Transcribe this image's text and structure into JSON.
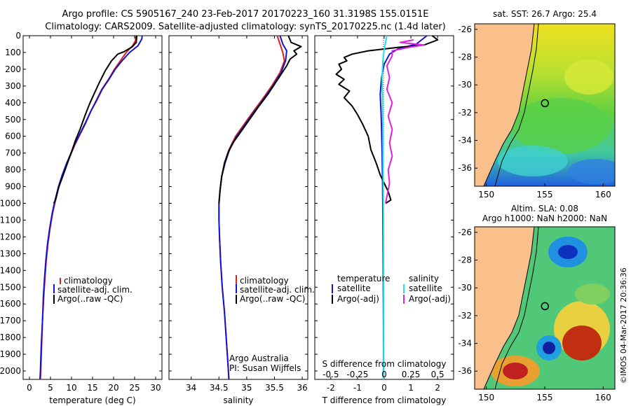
{
  "header": {
    "line1": "Argo profile: CS 5905167_240 23-Feb-2017 20170223_160 31.3198S 155.0151E",
    "line2": "Climatology: CARS2009. Satellite-adjusted climatology: synTS_20170225.nc (1.4d later)"
  },
  "colors": {
    "climatology": "#e0201b",
    "satellite": "#1414d0",
    "argo": "#000000",
    "salinity_satellite": "#22e0e8",
    "salinity_argo": "#e020e0",
    "land": "#f9c08c"
  },
  "depth_axis": {
    "ticks": [
      0,
      100,
      200,
      300,
      400,
      500,
      600,
      700,
      800,
      900,
      1000,
      1100,
      1200,
      1300,
      1400,
      1500,
      1600,
      1700,
      1800,
      1900,
      2000
    ],
    "range": [
      0,
      2050
    ]
  },
  "chart_data": [
    {
      "type": "line",
      "id": "temperature",
      "xlabel": "temperature (deg C)",
      "xticks": [
        0,
        5,
        10,
        15,
        20,
        25,
        30
      ],
      "xlim": [
        -1.5,
        31.5
      ],
      "ylim": [
        0,
        2050
      ],
      "legend": {
        "position": "center-right",
        "entries": [
          "climatology",
          "satellite-adj. clim.",
          "Argo(..raw -QC)"
        ]
      },
      "series": [
        {
          "name": "climatology",
          "color": "#e0201b",
          "points": [
            [
              25.3,
              0
            ],
            [
              25.2,
              30
            ],
            [
              24.5,
              60
            ],
            [
              23.0,
              100
            ],
            [
              21.6,
              150
            ],
            [
              20.2,
              200
            ],
            [
              18.8,
              260
            ],
            [
              17.2,
              320
            ],
            [
              15.8,
              390
            ],
            [
              14.6,
              450
            ],
            [
              13.4,
              520
            ],
            [
              12.0,
              590
            ],
            [
              10.8,
              650
            ],
            [
              9.8,
              710
            ],
            [
              8.8,
              770
            ],
            [
              7.9,
              830
            ],
            [
              7.0,
              900
            ],
            [
              6.2,
              980
            ],
            [
              5.5,
              1060
            ],
            [
              4.9,
              1150
            ],
            [
              4.4,
              1240
            ],
            [
              4.0,
              1340
            ],
            [
              3.7,
              1440
            ],
            [
              3.4,
              1560
            ],
            [
              3.1,
              1700
            ],
            [
              2.9,
              1850
            ],
            [
              2.7,
              2000
            ],
            [
              2.6,
              2050
            ]
          ]
        },
        {
          "name": "satellite-adj. clim.",
          "color": "#1414d0",
          "points": [
            [
              26.8,
              0
            ],
            [
              26.7,
              20
            ],
            [
              25.8,
              60
            ],
            [
              23.8,
              100
            ],
            [
              22.0,
              150
            ],
            [
              20.4,
              200
            ],
            [
              18.9,
              260
            ],
            [
              17.3,
              320
            ],
            [
              15.9,
              390
            ],
            [
              14.6,
              450
            ],
            [
              13.3,
              520
            ],
            [
              11.9,
              590
            ],
            [
              10.7,
              650
            ],
            [
              9.7,
              710
            ],
            [
              8.7,
              770
            ],
            [
              7.8,
              830
            ],
            [
              6.9,
              900
            ],
            [
              6.1,
              980
            ],
            [
              5.4,
              1060
            ],
            [
              4.8,
              1150
            ],
            [
              4.3,
              1240
            ],
            [
              3.9,
              1340
            ],
            [
              3.6,
              1440
            ],
            [
              3.3,
              1560
            ],
            [
              3.1,
              1700
            ],
            [
              2.8,
              1850
            ],
            [
              2.6,
              2000
            ],
            [
              2.5,
              2050
            ]
          ]
        },
        {
          "name": "Argo(..raw -QC)",
          "color": "#000000",
          "points": [
            [
              25.5,
              0
            ],
            [
              25.4,
              40
            ],
            [
              24.5,
              65
            ],
            [
              22.5,
              95
            ],
            [
              21.0,
              110
            ],
            [
              19.5,
              150
            ],
            [
              18.0,
              210
            ],
            [
              16.6,
              280
            ],
            [
              15.5,
              340
            ],
            [
              14.4,
              400
            ],
            [
              13.3,
              470
            ],
            [
              12.0,
              560
            ],
            [
              11.0,
              620
            ],
            [
              9.9,
              700
            ],
            [
              8.9,
              770
            ],
            [
              7.9,
              840
            ],
            [
              7.0,
              900
            ],
            [
              6.2,
              980
            ],
            [
              5.8,
              1000
            ]
          ]
        }
      ]
    },
    {
      "type": "line",
      "id": "salinity",
      "xlabel": "salinity",
      "xticks": [
        34,
        34.5,
        35,
        35.5,
        36
      ],
      "xlim": [
        33.6,
        36.1
      ],
      "ylim": [
        0,
        2050
      ],
      "legend": {
        "position": "center-right",
        "entries": [
          "climatology",
          "satellite-adj. clim.",
          "Argo(..raw -QC)"
        ]
      },
      "annotation": [
        "Argo Australia",
        "PI: Susan Wijffels"
      ],
      "series": [
        {
          "name": "climatology",
          "color": "#e0201b",
          "points": [
            [
              35.55,
              0
            ],
            [
              35.6,
              50
            ],
            [
              35.65,
              100
            ],
            [
              35.68,
              150
            ],
            [
              35.6,
              220
            ],
            [
              35.45,
              300
            ],
            [
              35.28,
              380
            ],
            [
              35.1,
              460
            ],
            [
              34.95,
              530
            ],
            [
              34.8,
              600
            ],
            [
              34.68,
              680
            ],
            [
              34.6,
              760
            ],
            [
              34.55,
              840
            ],
            [
              34.52,
              920
            ],
            [
              34.5,
              1000
            ],
            [
              34.5,
              1100
            ],
            [
              34.51,
              1200
            ],
            [
              34.53,
              1350
            ],
            [
              34.56,
              1500
            ],
            [
              34.6,
              1650
            ],
            [
              34.63,
              1800
            ],
            [
              34.66,
              1950
            ],
            [
              34.68,
              2050
            ]
          ]
        },
        {
          "name": "satellite-adj. clim.",
          "color": "#1414d0",
          "points": [
            [
              35.6,
              0
            ],
            [
              35.65,
              50
            ],
            [
              35.72,
              90
            ],
            [
              35.7,
              150
            ],
            [
              35.62,
              220
            ],
            [
              35.47,
              300
            ],
            [
              35.3,
              380
            ],
            [
              35.12,
              460
            ],
            [
              34.97,
              530
            ],
            [
              34.82,
              600
            ],
            [
              34.69,
              680
            ],
            [
              34.61,
              760
            ],
            [
              34.55,
              840
            ],
            [
              34.52,
              920
            ],
            [
              34.5,
              1000
            ],
            [
              34.5,
              1100
            ],
            [
              34.51,
              1200
            ],
            [
              34.53,
              1350
            ],
            [
              34.56,
              1500
            ],
            [
              34.6,
              1650
            ],
            [
              34.63,
              1800
            ],
            [
              34.66,
              1950
            ],
            [
              34.68,
              2050
            ]
          ]
        },
        {
          "name": "Argo(..raw -QC)",
          "color": "#000000",
          "points": [
            [
              35.75,
              0
            ],
            [
              35.8,
              40
            ],
            [
              35.98,
              65
            ],
            [
              35.85,
              90
            ],
            [
              35.9,
              110
            ],
            [
              35.78,
              140
            ],
            [
              35.72,
              180
            ],
            [
              35.6,
              240
            ],
            [
              35.5,
              290
            ],
            [
              35.38,
              350
            ],
            [
              35.22,
              420
            ],
            [
              35.05,
              500
            ],
            [
              34.9,
              570
            ],
            [
              34.75,
              640
            ],
            [
              34.66,
              700
            ],
            [
              34.6,
              760
            ],
            [
              34.55,
              840
            ],
            [
              34.52,
              920
            ],
            [
              34.5,
              1000
            ]
          ]
        }
      ]
    },
    {
      "type": "line",
      "id": "difference",
      "xlabel": "T difference from climatology",
      "xlabel_top": "S difference from climatology",
      "xticks": [
        -2,
        -1,
        0,
        1,
        2
      ],
      "xticks_top": [
        "-0.5",
        "-0.25",
        "0",
        "0.25",
        "0.5"
      ],
      "xlim": [
        -2.6,
        2.6
      ],
      "ylim": [
        0,
        2050
      ],
      "legend": {
        "position": "center",
        "groups": [
          {
            "title": "temperature",
            "entries": [
              "satellite",
              "Argo(-adj)"
            ]
          },
          {
            "title": "salinity",
            "entries": [
              "satellite",
              "Argo(-adj)"
            ]
          }
        ]
      },
      "series": [
        {
          "name": "temperature satellite",
          "color": "#1414d0",
          "points": [
            [
              1.6,
              0
            ],
            [
              1.2,
              50
            ],
            [
              0.5,
              80
            ],
            [
              0.2,
              110
            ],
            [
              0.0,
              170
            ],
            [
              -0.1,
              250
            ],
            [
              -0.15,
              350
            ],
            [
              -0.12,
              450
            ],
            [
              -0.1,
              550
            ],
            [
              -0.08,
              700
            ],
            [
              -0.06,
              900
            ],
            [
              -0.05,
              1100
            ],
            [
              -0.04,
              1400
            ],
            [
              -0.03,
              1700
            ],
            [
              -0.02,
              2050
            ]
          ]
        },
        {
          "name": "temperature Argo(-adj)",
          "color": "#000000",
          "points": [
            [
              1.8,
              0
            ],
            [
              2.0,
              25
            ],
            [
              1.5,
              55
            ],
            [
              0.5,
              70
            ],
            [
              -0.6,
              90
            ],
            [
              -1.2,
              110
            ],
            [
              -1.5,
              130
            ],
            [
              -1.4,
              150
            ],
            [
              -1.7,
              170
            ],
            [
              -1.6,
              200
            ],
            [
              -1.8,
              230
            ],
            [
              -1.5,
              260
            ],
            [
              -1.7,
              290
            ],
            [
              -1.3,
              330
            ],
            [
              -1.5,
              370
            ],
            [
              -1.2,
              420
            ],
            [
              -1.0,
              470
            ],
            [
              -0.8,
              530
            ],
            [
              -0.6,
              600
            ],
            [
              -0.5,
              680
            ],
            [
              -0.3,
              760
            ],
            [
              -0.15,
              830
            ],
            [
              0.0,
              880
            ],
            [
              0.15,
              930
            ],
            [
              0.25,
              980
            ],
            [
              0.05,
              1000
            ]
          ]
        },
        {
          "name": "salinity satellite",
          "color": "#22e0e8",
          "points": [
            [
              0.1,
              0
            ],
            [
              0.05,
              40
            ],
            [
              0.0,
              80
            ],
            [
              -0.05,
              150
            ],
            [
              -0.08,
              250
            ],
            [
              -0.06,
              400
            ],
            [
              -0.05,
              600
            ],
            [
              -0.04,
              800
            ],
            [
              -0.03,
              1100
            ],
            [
              -0.02,
              1500
            ],
            [
              -0.02,
              2050
            ]
          ]
        },
        {
          "name": "salinity Argo(-adj)",
          "color": "#e020e0",
          "points": [
            [
              1.1,
              25
            ],
            [
              0.6,
              40
            ],
            [
              1.5,
              55
            ],
            [
              0.9,
              70
            ],
            [
              0.3,
              90
            ],
            [
              0.3,
              120
            ],
            [
              0.1,
              180
            ],
            [
              0.2,
              250
            ],
            [
              0.1,
              320
            ],
            [
              0.3,
              400
            ],
            [
              0.15,
              480
            ],
            [
              0.3,
              560
            ],
            [
              0.2,
              640
            ],
            [
              0.3,
              720
            ],
            [
              0.15,
              800
            ],
            [
              0.2,
              880
            ],
            [
              0.05,
              1000
            ]
          ]
        }
      ]
    }
  ],
  "maps": {
    "sst": {
      "title": "sat. SST: 26.7 Argo: 25.4",
      "xticks": [
        150,
        155,
        160
      ],
      "yticks": [
        -26,
        -28,
        -30,
        -32,
        -34,
        -36
      ],
      "xlim": [
        149,
        161
      ],
      "ylim": [
        -37.3,
        -25.6
      ],
      "argo_position": [
        155.0151,
        -31.3198
      ]
    },
    "sla": {
      "title_line1": "Altim. SLA: 0.08",
      "title_line2": "Argo h1000: NaN h2000: NaN",
      "xticks": [
        150,
        155,
        160
      ],
      "yticks": [
        -26,
        -28,
        -30,
        -32,
        -34,
        -36
      ],
      "xlim": [
        149,
        161
      ],
      "ylim": [
        -37.3,
        -25.6
      ],
      "argo_position": [
        155.0151,
        -31.3198
      ]
    }
  },
  "timestamp": "©IMOS 04-Mar-2017 20:36:36"
}
